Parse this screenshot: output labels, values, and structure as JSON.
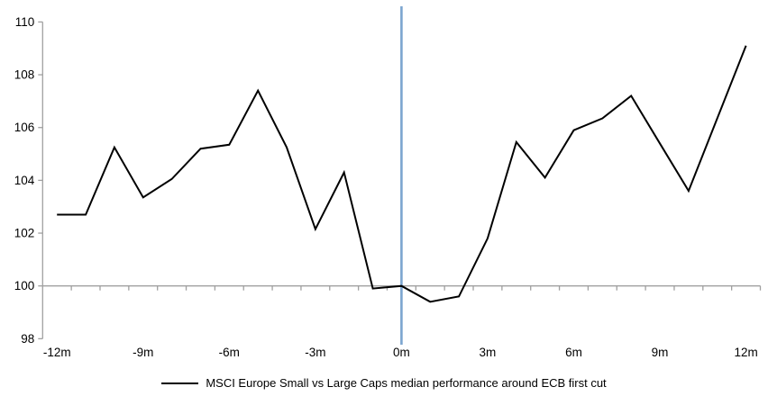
{
  "chart_data": {
    "type": "line",
    "title": "",
    "xlabel": "",
    "ylabel": "",
    "x": [
      -12,
      -11,
      -10,
      -9,
      -8,
      -7,
      -6,
      -5,
      -4,
      -3,
      -2,
      -1,
      0,
      1,
      2,
      3,
      4,
      5,
      6,
      7,
      8,
      9,
      10,
      11,
      12
    ],
    "series": [
      {
        "name": "MSCI Europe Small vs Large Caps median performance around ECB first cut",
        "values": [
          102.7,
          102.7,
          105.25,
          103.35,
          104.05,
          105.2,
          105.35,
          107.4,
          105.25,
          102.15,
          104.3,
          99.9,
          100.0,
          99.4,
          99.6,
          101.8,
          105.45,
          104.1,
          105.9,
          106.35,
          107.2,
          105.4,
          103.6,
          106.35,
          109.1
        ]
      }
    ],
    "x_tick_labels": [
      "-12m",
      "-9m",
      "-6m",
      "-3m",
      "0m",
      "3m",
      "6m",
      "9m",
      "12m"
    ],
    "x_tick_months": [
      -12,
      -9,
      -6,
      -3,
      0,
      3,
      6,
      9,
      12
    ],
    "y_ticks": [
      98,
      100,
      102,
      104,
      106,
      108,
      110
    ],
    "ylim": [
      98,
      110
    ],
    "baseline_value": 100,
    "event_line_x": 0,
    "grid": false,
    "legend_position": "bottom",
    "colors": {
      "series_line": "#000000",
      "event_line": "#7CA5D0",
      "axis": "#A0A0A0",
      "text": "#000000",
      "background": "#FFFFFF"
    }
  },
  "legend": {
    "label": "MSCI Europe Small vs Large Caps median performance around ECB first cut"
  }
}
